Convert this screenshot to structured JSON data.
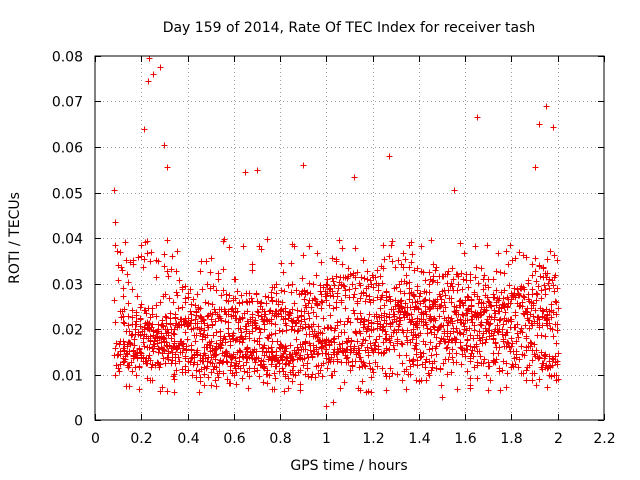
{
  "chart_data": {
    "type": "scatter",
    "title": "Day 159 of 2014, Rate Of TEC Index for receiver tash",
    "xlabel": "GPS time / hours",
    "ylabel": "ROTI / TECUs",
    "xlim": [
      0,
      2.2
    ],
    "ylim": [
      0,
      0.08
    ],
    "xticks": [
      "0",
      "0.2",
      "0.4",
      "0.6",
      "0.8",
      "1",
      "1.2",
      "1.4",
      "1.6",
      "1.8",
      "2",
      "2.2"
    ],
    "yticks": [
      "0",
      "0.01",
      "0.02",
      "0.03",
      "0.04",
      "0.05",
      "0.06",
      "0.07",
      "0.08"
    ],
    "xtick_values": [
      0,
      0.2,
      0.4,
      0.6,
      0.8,
      1.0,
      1.2,
      1.4,
      1.6,
      1.8,
      2.0,
      2.2
    ],
    "ytick_values": [
      0,
      0.01,
      0.02,
      0.03,
      0.04,
      0.05,
      0.06,
      0.07,
      0.08
    ],
    "grid": true,
    "marker": "+",
    "color": "#ee0000",
    "x_data_range": [
      0.08,
      2.0
    ],
    "notable_points": [
      {
        "x": 0.08,
        "y": 0.0505
      },
      {
        "x": 0.085,
        "y": 0.0435
      },
      {
        "x": 0.21,
        "y": 0.064
      },
      {
        "x": 0.23,
        "y": 0.0745
      },
      {
        "x": 0.235,
        "y": 0.0795
      },
      {
        "x": 0.25,
        "y": 0.076
      },
      {
        "x": 0.28,
        "y": 0.0775
      },
      {
        "x": 0.3,
        "y": 0.0605
      },
      {
        "x": 0.31,
        "y": 0.0555
      },
      {
        "x": 0.65,
        "y": 0.0545
      },
      {
        "x": 0.7,
        "y": 0.055
      },
      {
        "x": 0.9,
        "y": 0.056
      },
      {
        "x": 1.0,
        "y": 0.003
      },
      {
        "x": 1.03,
        "y": 0.004
      },
      {
        "x": 1.12,
        "y": 0.0535
      },
      {
        "x": 1.27,
        "y": 0.058
      },
      {
        "x": 1.5,
        "y": 0.005
      },
      {
        "x": 1.55,
        "y": 0.0505
      },
      {
        "x": 1.65,
        "y": 0.0665
      },
      {
        "x": 1.92,
        "y": 0.065
      },
      {
        "x": 1.95,
        "y": 0.069
      },
      {
        "x": 1.98,
        "y": 0.0645
      },
      {
        "x": 1.9,
        "y": 0.0555
      },
      {
        "x": 2.0,
        "y": 0.009
      }
    ]
  }
}
